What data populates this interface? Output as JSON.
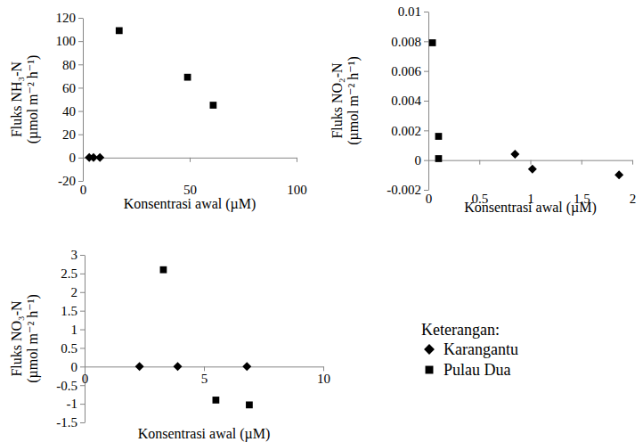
{
  "chart_data": [
    {
      "type": "scatter",
      "x_label": "Konsentrasi awal (µM)",
      "y_label": [
        "Fluks NH₃-N",
        "(µmol m⁻² h⁻¹)"
      ],
      "xlim": [
        0,
        100
      ],
      "xticks": [
        0,
        50,
        100
      ],
      "ylim": [
        -20,
        120
      ],
      "yticks": [
        -20,
        0,
        20,
        40,
        60,
        80,
        100,
        120
      ],
      "series": [
        {
          "name": "Karangantu",
          "marker": "diamond",
          "color": "#000000",
          "x": [
            3,
            5,
            8
          ],
          "values": [
            0,
            0,
            0
          ]
        },
        {
          "name": "Pulau Dua",
          "marker": "square",
          "color": "#000000",
          "x": [
            17,
            49,
            61
          ],
          "values": [
            109,
            69,
            45
          ]
        }
      ]
    },
    {
      "type": "scatter",
      "x_label": "Konsentrasi awal (µM)",
      "y_label": [
        "Fluks NO₂-N",
        "(µmol m⁻² h⁻¹)"
      ],
      "xlim": [
        0,
        2
      ],
      "xticks": [
        0,
        0.5,
        1,
        1.5,
        2
      ],
      "ylim": [
        -0.002,
        0.01
      ],
      "yticks": [
        -0.002,
        0,
        0.002,
        0.004,
        0.006,
        0.008,
        0.01
      ],
      "series": [
        {
          "name": "Karangantu",
          "marker": "diamond",
          "color": "#000000",
          "x": [
            0.85,
            1.02,
            1.87
          ],
          "values": [
            0.0004,
            -0.0006,
            -0.001
          ]
        },
        {
          "name": "Pulau Dua",
          "marker": "square",
          "color": "#000000",
          "x": [
            0.04,
            0.1,
            0.1
          ],
          "values": [
            0.0079,
            0.0016,
            0.0001
          ]
        }
      ]
    },
    {
      "type": "scatter",
      "x_label": "Konsentrasi awal (µM)",
      "y_label": [
        "Fluks NO₃-N",
        "(µmol m⁻² h⁻¹)"
      ],
      "xlim": [
        0,
        10
      ],
      "xticks": [
        0,
        5,
        10
      ],
      "ylim": [
        -1.5,
        3
      ],
      "yticks": [
        -1.5,
        -1,
        -0.5,
        0,
        0.5,
        1,
        1.5,
        2,
        2.5,
        3
      ],
      "legend": "right",
      "legend_title": "Keterangan:",
      "series": [
        {
          "name": "Karangantu",
          "marker": "diamond",
          "color": "#000000",
          "x": [
            2.3,
            3.9,
            6.8
          ],
          "values": [
            0,
            0,
            0
          ]
        },
        {
          "name": "Pulau Dua",
          "marker": "square",
          "color": "#000000",
          "x": [
            3.3,
            5.5,
            6.9
          ],
          "values": [
            2.6,
            -0.9,
            -1.03
          ]
        }
      ]
    }
  ]
}
